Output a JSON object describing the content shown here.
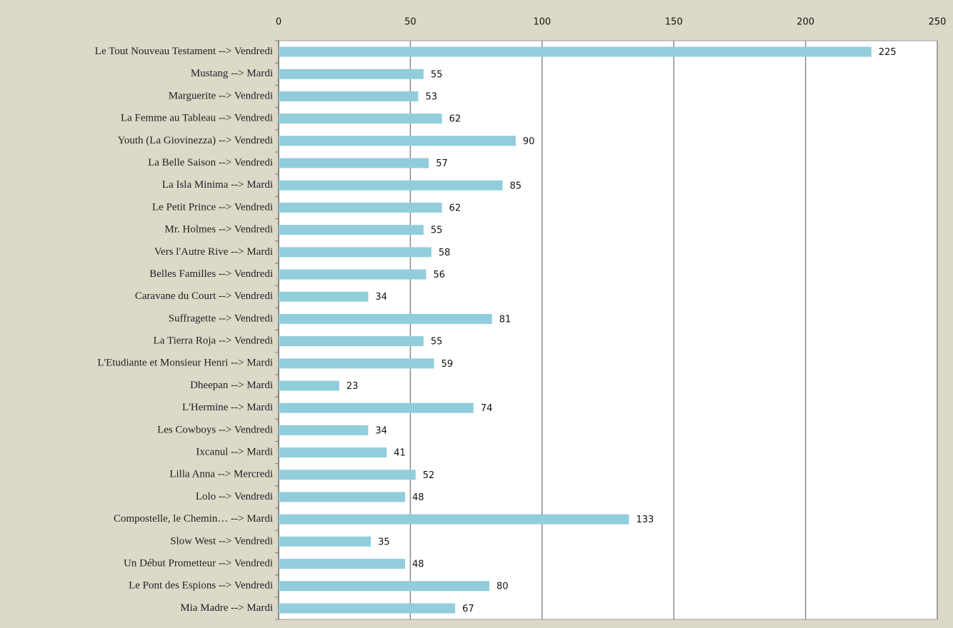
{
  "chart_data": {
    "type": "bar",
    "orientation": "horizontal",
    "categories": [
      "Le Tout Nouveau Testament --> Vendredi",
      "Mustang --> Mardi",
      "Marguerite --> Vendredi",
      "La Femme au Tableau --> Vendredi",
      "Youth (La Giovinezza) --> Vendredi",
      "La Belle Saison --> Vendredi",
      "La Isla Minima --> Mardi",
      "Le Petit Prince --> Vendredi",
      "Mr. Holmes --> Vendredi",
      "Vers l'Autre Rive --> Mardi",
      "Belles Familles --> Vendredi",
      "Caravane du Court --> Vendredi",
      "Suffragette --> Vendredi",
      "La Tierra Roja --> Vendredi",
      "L'Etudiante et Monsieur Henri --> Mardi",
      "Dheepan --> Mardi",
      "L'Hermine --> Mardi",
      "Les Cowboys --> Vendredi",
      "Ixcanul --> Mardi",
      "Lilla Anna --> Mercredi",
      "Lolo --> Vendredi",
      "Compostelle, le Chemin… --> Mardi",
      "Slow West --> Vendredi",
      "Un Début Prometteur --> Vendredi",
      "Le Pont des Espions --> Vendredi",
      "Mia Madre --> Mardi"
    ],
    "values": [
      225,
      55,
      53,
      62,
      90,
      57,
      85,
      62,
      55,
      58,
      56,
      34,
      81,
      55,
      59,
      23,
      74,
      34,
      41,
      52,
      48,
      133,
      35,
      48,
      80,
      67
    ],
    "color": "#92cddc",
    "xlim": [
      0,
      250
    ],
    "xticks": [
      0,
      50,
      100,
      150,
      200,
      250
    ],
    "grid": true
  }
}
